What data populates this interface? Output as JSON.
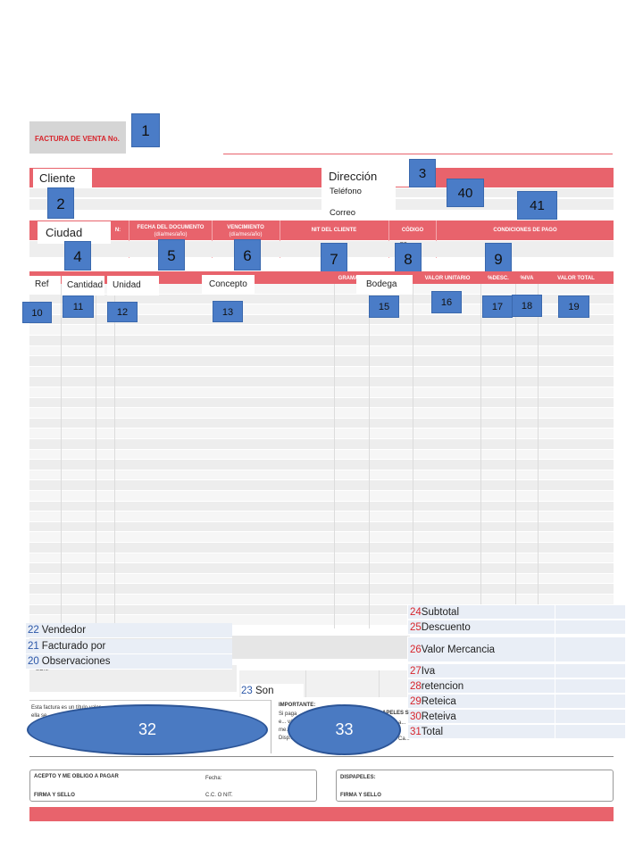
{
  "header": {
    "invoice_title": "FACTURA DE VENTA No.",
    "client_label": "Cliente",
    "address_label": "Dirección",
    "phone_label": "Teléfono",
    "email_label": "Correo",
    "city_label": "Ciudad"
  },
  "doc_headers": {
    "col_n": "N:",
    "doc_date": "FECHA DEL DOCUMENTO",
    "doc_date_sub": "(día/mes/año)",
    "due": "VENCIMIENTO",
    "due_sub": "(día/mes/año)",
    "nit": "NIT DEL CLIENTE",
    "code": "CÓDIGO",
    "conditions": "CONDICIONES DE PAGO",
    "code_note": "po"
  },
  "item_headers": {
    "ref": "Ref",
    "qty": "Cantidad",
    "unit": "Unidad",
    "concept": "Concepto",
    "gram": "GRAMA",
    "warehouse": "Bodega",
    "unit_value": "VALOR UNITARIO",
    "disc": "%DESC.",
    "iva": "%IVA",
    "total": "VALOR TOTAL"
  },
  "markers": {
    "m1": "1",
    "m2": "2",
    "m3": "3",
    "m4": "4",
    "m5": "5",
    "m6": "6",
    "m7": "7",
    "m8": "8",
    "m9": "9",
    "m10": "10",
    "m11": "11",
    "m12": "12",
    "m13": "13",
    "m15": "15",
    "m16": "16",
    "m17": "17",
    "m18": "18",
    "m19": "19",
    "m40": "40",
    "m41": "41",
    "m32": "32",
    "m33": "33"
  },
  "left_fields": [
    {
      "num": "22",
      "label": "Vendedor"
    },
    {
      "num": "21",
      "label": "Facturado por"
    },
    {
      "num": "20",
      "label": "Observaciones"
    }
  ],
  "son": {
    "num": "23",
    "label": "Son"
  },
  "son_small": "SON:",
  "totals": [
    {
      "num": "24",
      "label": "Subtotal"
    },
    {
      "num": "25",
      "label": "Descuento"
    },
    {
      "num": "26",
      "label": "Valor Mercancia"
    },
    {
      "num": "27",
      "label": "Iva"
    },
    {
      "num": "28",
      "label": "retencion"
    },
    {
      "num": "29",
      "label": "Reteica"
    },
    {
      "num": "30",
      "label": "Reteiva"
    },
    {
      "num": "31",
      "label": "Total"
    }
  ],
  "legal": {
    "left_text": "Esta factura es un título valor ... en ella se ... con ... efectivo",
    "important": "IMPORTANTE:",
    "important_text": "Si paga e... válid... me... sug... Disp...",
    "dispapeles_mid": "APELES S",
    "dispapeles_lines": "a... e Ca..."
  },
  "signature": {
    "accept": "ACEPTO Y ME OBLIGO A PAGAR",
    "date": "Fecha:",
    "sign": "FIRMA Y SELLO",
    "cc": "C.C. O NIT.",
    "dispapeles": "DISPAPELES:",
    "sign2": "FIRMA Y SELLO"
  },
  "colors": {
    "accent": "#e8636c",
    "marker": "#4a7cc7",
    "number_red": "#d7252c",
    "number_blue": "#2b57a8"
  }
}
